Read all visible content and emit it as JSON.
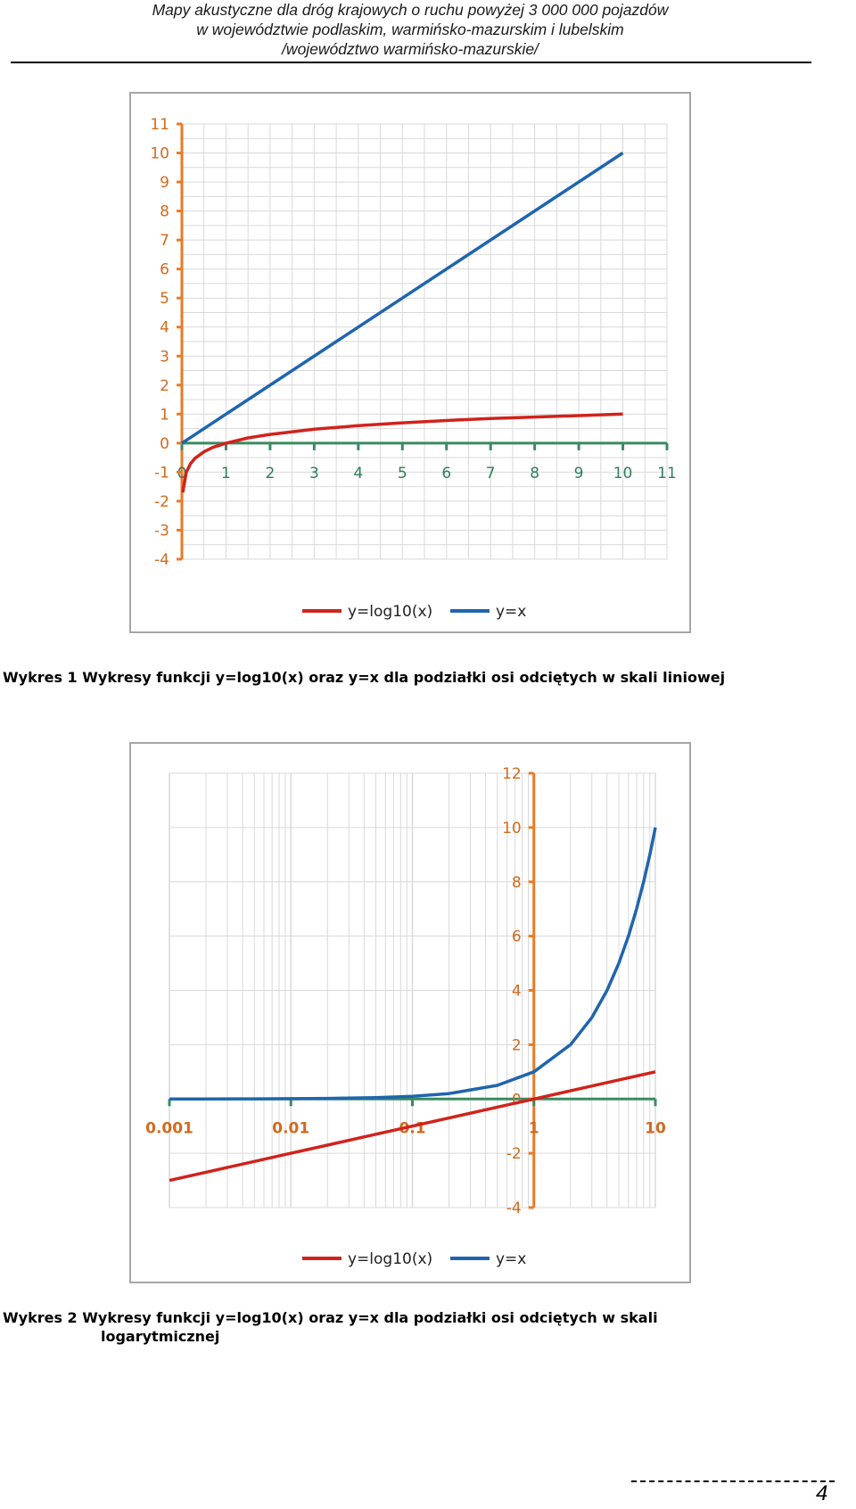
{
  "header": {
    "line1": "Mapy akustyczne dla dróg krajowych o ruchu powyżej 3 000 000 pojazdów",
    "line2": "w województwie podlaskim, warmińsko-mazurskim i lubelskim",
    "line3": "/województwo warmińsko-mazurskie/"
  },
  "colors": {
    "log_series": "#d0231c",
    "x_series": "#1f65ae",
    "x_axis": "#3a8a60",
    "y_axis": "#ea7a26",
    "grid": "#d9d9d9",
    "frame": "#a6a6a6"
  },
  "captions": {
    "chart1": "Wykres 1 Wykresy funkcji y=log10(x) oraz y=x dla podziałki osi odciętych w skali liniowej",
    "chart2_line1": "Wykres 2 Wykresy funkcji y=log10(x) oraz y=x dla podziałki osi odciętych w skali",
    "chart2_line2": "logarytmicznej"
  },
  "page_number": "4",
  "chart_data": [
    {
      "type": "line",
      "x_scale": "linear",
      "xlim": [
        0,
        11
      ],
      "ylim": [
        -4,
        11
      ],
      "x_ticks": [
        "0",
        "1",
        "2",
        "3",
        "4",
        "5",
        "6",
        "7",
        "8",
        "9",
        "10",
        "11"
      ],
      "y_ticks": [
        "11",
        "10",
        "9",
        "8",
        "7",
        "6",
        "5",
        "4",
        "3",
        "2",
        "1",
        "0",
        "-1",
        "-2",
        "-3",
        "-4"
      ],
      "grid": true,
      "legend_position": "bottom",
      "series": [
        {
          "name": "y=log10(x)",
          "color": "#d0231c",
          "x": [
            0.02,
            0.1,
            0.2,
            0.3,
            0.5,
            0.7,
            1,
            1.5,
            2,
            3,
            4,
            5,
            6,
            7,
            8,
            9,
            10
          ],
          "y": [
            -1.7,
            -1,
            -0.7,
            -0.52,
            -0.3,
            -0.15,
            0,
            0.18,
            0.3,
            0.48,
            0.6,
            0.7,
            0.78,
            0.85,
            0.9,
            0.95,
            1
          ]
        },
        {
          "name": "y=x",
          "color": "#1f65ae",
          "x": [
            0,
            10
          ],
          "y": [
            0,
            10
          ]
        }
      ]
    },
    {
      "type": "line",
      "x_scale": "log",
      "xlim": [
        0.001,
        10
      ],
      "ylim": [
        -4,
        12
      ],
      "x_ticks": [
        "0.001",
        "0.01",
        "0.1",
        "1",
        "10"
      ],
      "y_ticks": [
        "12",
        "10",
        "8",
        "6",
        "4",
        "2",
        "0",
        "-2",
        "-4"
      ],
      "grid": true,
      "legend_position": "bottom",
      "series": [
        {
          "name": "y=log10(x)",
          "color": "#d0231c",
          "x": [
            0.001,
            0.002,
            0.005,
            0.01,
            0.02,
            0.05,
            0.1,
            0.2,
            0.5,
            1,
            2,
            5,
            10
          ],
          "y": [
            -3,
            -2.7,
            -2.3,
            -2,
            -1.7,
            -1.3,
            -1,
            -0.7,
            -0.3,
            0,
            0.3,
            0.7,
            1
          ]
        },
        {
          "name": "y=x",
          "color": "#1f65ae",
          "x": [
            0.001,
            0.002,
            0.005,
            0.01,
            0.02,
            0.05,
            0.1,
            0.2,
            0.5,
            1,
            2,
            3,
            4,
            5,
            6,
            7,
            8,
            9,
            10
          ],
          "y": [
            0.001,
            0.002,
            0.005,
            0.01,
            0.02,
            0.05,
            0.1,
            0.2,
            0.5,
            1,
            2,
            3,
            4,
            5,
            6,
            7,
            8,
            9,
            10
          ]
        }
      ]
    }
  ]
}
